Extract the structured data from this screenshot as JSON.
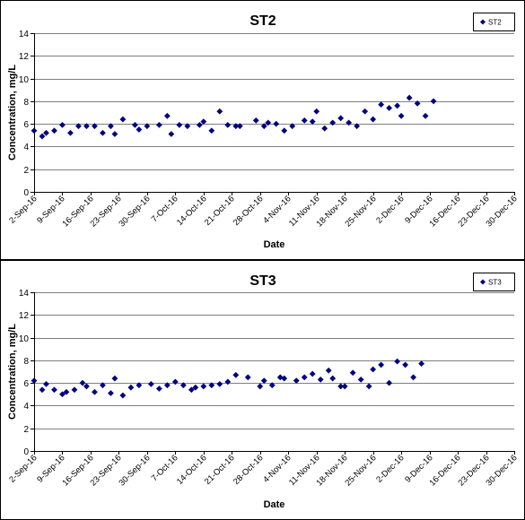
{
  "chart_data": [
    {
      "type": "scatter",
      "title": "ST2",
      "xlabel": "Date",
      "ylabel": "Concentration, mg/L",
      "ylim": [
        0,
        14
      ],
      "yticks": [
        "0",
        "2",
        "4",
        "6",
        "8",
        "10",
        "12",
        "14"
      ],
      "xticks": [
        "2-Sep-16",
        "9-Sep-16",
        "16-Sep-16",
        "23-Sep-16",
        "30-Sep-16",
        "7-Oct-16",
        "14-Oct-16",
        "21-Oct-16",
        "28-Oct-16",
        "4-Nov-16",
        "11-Nov-16",
        "18-Nov-16",
        "25-Nov-16",
        "2-Dec-16",
        "9-Dec-16",
        "16-Dec-16",
        "23-Dec-16",
        "30-Dec-16"
      ],
      "grid": "horizontal",
      "legend": "top-right",
      "series": [
        {
          "name": "ST2",
          "color": "#000080",
          "marker": "diamond",
          "points": [
            [
              "2-Sep-16",
              5.4
            ],
            [
              "4-Sep-16",
              4.9
            ],
            [
              "5-Sep-16",
              5.2
            ],
            [
              "7-Sep-16",
              5.4
            ],
            [
              "9-Sep-16",
              5.9
            ],
            [
              "11-Sep-16",
              5.2
            ],
            [
              "13-Sep-16",
              5.8
            ],
            [
              "15-Sep-16",
              5.8
            ],
            [
              "17-Sep-16",
              5.8
            ],
            [
              "19-Sep-16",
              5.2
            ],
            [
              "21-Sep-16",
              5.8
            ],
            [
              "22-Sep-16",
              5.1
            ],
            [
              "24-Sep-16",
              6.4
            ],
            [
              "27-Sep-16",
              5.9
            ],
            [
              "28-Sep-16",
              5.5
            ],
            [
              "30-Sep-16",
              5.8
            ],
            [
              "3-Oct-16",
              5.9
            ],
            [
              "5-Oct-16",
              6.7
            ],
            [
              "6-Oct-16",
              5.1
            ],
            [
              "8-Oct-16",
              5.9
            ],
            [
              "10-Oct-16",
              5.8
            ],
            [
              "13-Oct-16",
              5.9
            ],
            [
              "14-Oct-16",
              6.2
            ],
            [
              "16-Oct-16",
              5.4
            ],
            [
              "18-Oct-16",
              7.1
            ],
            [
              "20-Oct-16",
              5.9
            ],
            [
              "22-Oct-16",
              5.8
            ],
            [
              "23-Oct-16",
              5.8
            ],
            [
              "27-Oct-16",
              6.3
            ],
            [
              "29-Oct-16",
              5.8
            ],
            [
              "30-Oct-16",
              6.1
            ],
            [
              "1-Nov-16",
              6.0
            ],
            [
              "3-Nov-16",
              5.4
            ],
            [
              "5-Nov-16",
              5.8
            ],
            [
              "8-Nov-16",
              6.3
            ],
            [
              "10-Nov-16",
              6.2
            ],
            [
              "11-Nov-16",
              7.1
            ],
            [
              "13-Nov-16",
              5.6
            ],
            [
              "15-Nov-16",
              6.1
            ],
            [
              "17-Nov-16",
              6.5
            ],
            [
              "19-Nov-16",
              6.1
            ],
            [
              "21-Nov-16",
              5.8
            ],
            [
              "23-Nov-16",
              7.1
            ],
            [
              "25-Nov-16",
              6.4
            ],
            [
              "27-Nov-16",
              7.7
            ],
            [
              "29-Nov-16",
              7.4
            ],
            [
              "1-Dec-16",
              7.6
            ],
            [
              "2-Dec-16",
              6.7
            ],
            [
              "4-Dec-16",
              8.3
            ],
            [
              "6-Dec-16",
              7.8
            ],
            [
              "8-Dec-16",
              6.7
            ],
            [
              "10-Dec-16",
              8.0
            ]
          ]
        }
      ]
    },
    {
      "type": "scatter",
      "title": "ST3",
      "xlabel": "Date",
      "ylabel": "Concentration, mg/L",
      "ylim": [
        0,
        14
      ],
      "yticks": [
        "0",
        "2",
        "4",
        "6",
        "8",
        "10",
        "12",
        "14"
      ],
      "xticks": [
        "2-Sep-16",
        "9-Sep-16",
        "16-Sep-16",
        "23-Sep-16",
        "30-Sep-16",
        "7-Oct-16",
        "14-Oct-16",
        "21-Oct-16",
        "28-Oct-16",
        "4-Nov-16",
        "11-Nov-16",
        "18-Nov-16",
        "25-Nov-16",
        "2-Dec-16",
        "9-Dec-16",
        "16-Dec-16",
        "23-Dec-16",
        "30-Dec-16"
      ],
      "grid": "horizontal",
      "legend": "top-right",
      "series": [
        {
          "name": "ST3",
          "color": "#000080",
          "marker": "diamond",
          "points": [
            [
              "2-Sep-16",
              6.2
            ],
            [
              "4-Sep-16",
              5.4
            ],
            [
              "5-Sep-16",
              5.9
            ],
            [
              "7-Sep-16",
              5.4
            ],
            [
              "9-Sep-16",
              5.0
            ],
            [
              "10-Sep-16",
              5.2
            ],
            [
              "12-Sep-16",
              5.4
            ],
            [
              "14-Sep-16",
              6.0
            ],
            [
              "15-Sep-16",
              5.7
            ],
            [
              "17-Sep-16",
              5.2
            ],
            [
              "19-Sep-16",
              5.8
            ],
            [
              "21-Sep-16",
              5.1
            ],
            [
              "22-Sep-16",
              6.4
            ],
            [
              "24-Sep-16",
              4.9
            ],
            [
              "26-Sep-16",
              5.6
            ],
            [
              "28-Sep-16",
              5.8
            ],
            [
              "1-Oct-16",
              5.9
            ],
            [
              "3-Oct-16",
              5.5
            ],
            [
              "5-Oct-16",
              5.8
            ],
            [
              "7-Oct-16",
              6.1
            ],
            [
              "9-Oct-16",
              5.8
            ],
            [
              "11-Oct-16",
              5.4
            ],
            [
              "12-Oct-16",
              5.6
            ],
            [
              "14-Oct-16",
              5.7
            ],
            [
              "16-Oct-16",
              5.8
            ],
            [
              "18-Oct-16",
              5.9
            ],
            [
              "20-Oct-16",
              6.1
            ],
            [
              "22-Oct-16",
              6.7
            ],
            [
              "25-Oct-16",
              6.5
            ],
            [
              "28-Oct-16",
              5.7
            ],
            [
              "29-Oct-16",
              6.2
            ],
            [
              "31-Oct-16",
              5.8
            ],
            [
              "2-Nov-16",
              6.5
            ],
            [
              "3-Nov-16",
              6.4
            ],
            [
              "6-Nov-16",
              6.2
            ],
            [
              "8-Nov-16",
              6.5
            ],
            [
              "10-Nov-16",
              6.8
            ],
            [
              "12-Nov-16",
              6.3
            ],
            [
              "14-Nov-16",
              7.1
            ],
            [
              "15-Nov-16",
              6.4
            ],
            [
              "17-Nov-16",
              5.7
            ],
            [
              "18-Nov-16",
              5.7
            ],
            [
              "20-Nov-16",
              6.9
            ],
            [
              "22-Nov-16",
              6.3
            ],
            [
              "24-Nov-16",
              5.7
            ],
            [
              "25-Nov-16",
              7.2
            ],
            [
              "27-Nov-16",
              7.6
            ],
            [
              "29-Nov-16",
              6.0
            ],
            [
              "1-Dec-16",
              7.9
            ],
            [
              "3-Dec-16",
              7.6
            ],
            [
              "5-Dec-16",
              6.5
            ],
            [
              "7-Dec-16",
              7.7
            ]
          ]
        }
      ]
    }
  ]
}
